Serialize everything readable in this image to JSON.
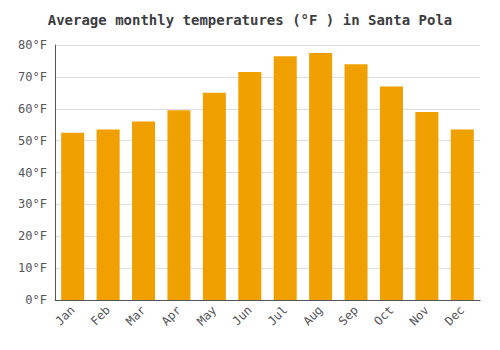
{
  "chart_data": {
    "type": "bar",
    "title": "Average monthly temperatures (°F ) in Santa Pola",
    "categories": [
      "Jan",
      "Feb",
      "Mar",
      "Apr",
      "May",
      "Jun",
      "Jul",
      "Aug",
      "Sep",
      "Oct",
      "Nov",
      "Dec"
    ],
    "values": [
      52.5,
      53.5,
      56.0,
      59.5,
      65.0,
      71.5,
      76.5,
      77.5,
      74.0,
      67.0,
      59.0,
      53.5
    ],
    "color": "#F0A000",
    "ylim": [
      0,
      80
    ],
    "yticks": [
      {
        "value": 0,
        "label": "0°F"
      },
      {
        "value": 10,
        "label": "10°F"
      },
      {
        "value": 20,
        "label": "20°F"
      },
      {
        "value": 30,
        "label": "30°F"
      },
      {
        "value": 40,
        "label": "40°F"
      },
      {
        "value": 50,
        "label": "50°F"
      },
      {
        "value": 60,
        "label": "60°F"
      },
      {
        "value": 70,
        "label": "70°F"
      },
      {
        "value": 80,
        "label": "80°F"
      }
    ],
    "grid": true
  }
}
